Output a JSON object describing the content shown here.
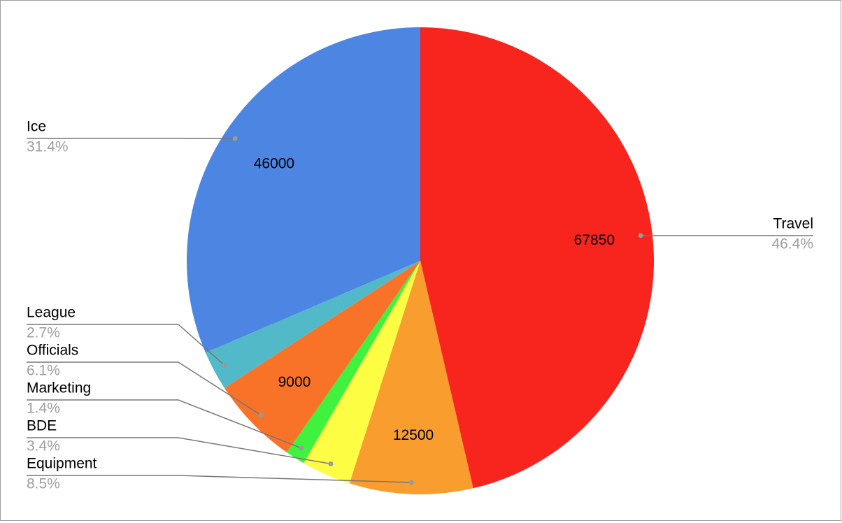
{
  "chart_data": {
    "type": "pie",
    "categories": [
      "Travel",
      "Equipment",
      "BDE",
      "Marketing",
      "Officials",
      "League",
      "Ice"
    ],
    "values": [
      67850,
      12500,
      5000,
      2000,
      9000,
      4000,
      46000
    ],
    "percent_labels": [
      "46.4%",
      "8.5%",
      "3.4%",
      "1.4%",
      "6.1%",
      "2.7%",
      "31.4%"
    ],
    "colors": [
      "#f7251e",
      "#f99d2e",
      "#fdfd44",
      "#3ef23e",
      "#f87328",
      "#52b9c8",
      "#4c86e2"
    ]
  }
}
